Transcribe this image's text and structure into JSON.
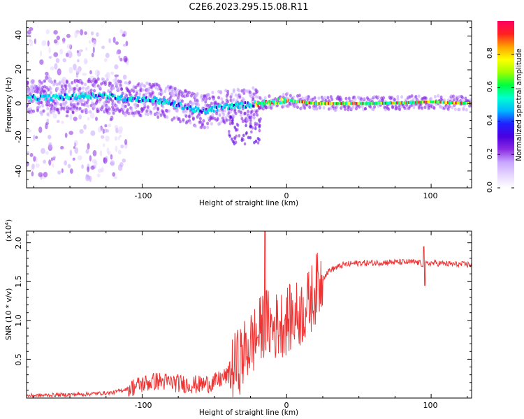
{
  "title": "C2E6.2023.295.15.08.R11",
  "colors": {
    "snr_line": "#ee3333",
    "colormap": [
      "#ffffff",
      "#e6d6ff",
      "#c8a6ff",
      "#8a2be2",
      "#4b00e0",
      "#2020ff",
      "#00b8ff",
      "#00ffd0",
      "#00ff40",
      "#a0ff00",
      "#ffff00",
      "#ffa000",
      "#ff2020",
      "#ff0060"
    ]
  },
  "chart_data": [
    {
      "type": "heatmap",
      "description_title": "",
      "xlabel": "Height of straight line (km)",
      "ylabel": "Frequency (Hz)",
      "xlim": [
        -180,
        128
      ],
      "ylim": [
        -50,
        49
      ],
      "x_ticks": [
        -100,
        0,
        100
      ],
      "y_ticks": [
        -40,
        -20,
        0,
        20,
        40
      ],
      "colorbar": {
        "label": "Normalized spectral amplitude",
        "range": [
          0,
          1
        ],
        "ticks": [
          "0.0",
          "0.2",
          "0.4",
          "0.6",
          "0.8"
        ]
      },
      "ridge": {
        "x": [
          -180,
          -150,
          -130,
          -110,
          -90,
          -70,
          -58,
          -45,
          -30,
          -20,
          0,
          20,
          60,
          100,
          128
        ],
        "y": [
          3,
          4,
          5,
          3,
          2,
          -2,
          -5,
          -2,
          -1,
          0,
          2,
          0,
          0,
          1,
          0
        ]
      }
    },
    {
      "type": "line",
      "xlabel": "Height of straight line (km)",
      "ylabel": "SNR (10 * v/v)",
      "y_multiplier": "(x10^4)",
      "xlim": [
        -180,
        128
      ],
      "ylim": [
        0,
        2.15
      ],
      "x_ticks": [
        -100,
        0,
        100
      ],
      "y_ticks": [
        "0.5",
        "1.0",
        "1.5",
        "2.0"
      ],
      "series": [
        {
          "x": [
            -180,
            -160,
            -140,
            -120,
            -110,
            -100,
            -90,
            -80,
            -70,
            -60,
            -50,
            -40,
            -30,
            -25,
            -20,
            -15,
            -10,
            -5,
            0,
            5,
            10,
            15,
            20,
            25,
            30,
            40,
            50,
            60,
            70,
            80,
            90,
            95,
            100,
            110,
            120,
            128
          ],
          "y": [
            0.03,
            0.04,
            0.05,
            0.07,
            0.12,
            0.18,
            0.22,
            0.2,
            0.18,
            0.17,
            0.2,
            0.3,
            0.55,
            0.7,
            0.8,
            1.0,
            0.9,
            0.95,
            1.0,
            1.05,
            1.1,
            1.2,
            1.4,
            1.55,
            1.65,
            1.72,
            1.74,
            1.74,
            1.75,
            1.75,
            1.75,
            1.72,
            1.74,
            1.73,
            1.72,
            1.72
          ]
        }
      ]
    }
  ],
  "top": {
    "xlabel": "Height of straight line (km)",
    "ylabel": "Frequency (Hz)",
    "x_tick_labels": [
      "-100",
      "0",
      "100"
    ],
    "y_tick_labels": [
      "-40",
      "-20",
      "0",
      "20",
      "40"
    ]
  },
  "colorbar_ui": {
    "label": "Normalized spectral amplitude",
    "tick_labels": [
      "0.0",
      "0.2",
      "0.4",
      "0.6",
      "0.8"
    ]
  },
  "bottom": {
    "xlabel": "Height of straight line (km)",
    "ylabel": "SNR (10 * v/v)",
    "multiplier": "(x10",
    "multiplier_exp": "4",
    "x_tick_labels": [
      "-100",
      "0",
      "100"
    ],
    "y_tick_labels": [
      "0.5",
      "1.0",
      "1.5",
      "2.0"
    ]
  }
}
